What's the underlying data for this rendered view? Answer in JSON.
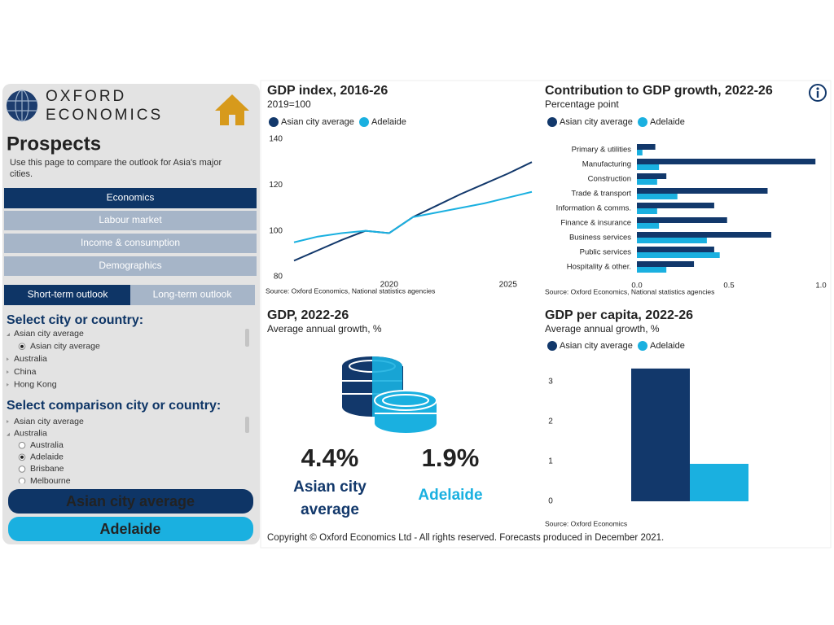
{
  "sidebar": {
    "logo": [
      "OXFORD",
      "ECONOMICS"
    ],
    "title": "Prospects",
    "description": "Use this page to compare the outlook for Asia's major cities.",
    "nav": [
      "Economics",
      "Labour market",
      "Income & consumption",
      "Demographics"
    ],
    "tabs": [
      "Short-term outlook",
      "Long-term outlook"
    ],
    "city_select": {
      "label": "Select city or country:",
      "items": [
        "Asian city average",
        "Asian city average",
        "Australia",
        "China",
        "Hong Kong"
      ]
    },
    "comparison_select": {
      "label": "Select comparison city or country:",
      "items": [
        "Asian city average",
        "Australia",
        "Australia",
        "Adelaide",
        "Brisbane",
        "Melbourne"
      ]
    },
    "selected": [
      "Asian city average",
      "Adelaide"
    ]
  },
  "footer": "Copyright © Oxford Economics Ltd - All rights reserved. Forecasts produced in December 2021.",
  "chart_data": [
    {
      "type": "line",
      "title": "GDP index, 2016-26",
      "subtitle": "2019=100",
      "source": "Source: Oxford Economics, National statistics agencies",
      "x": [
        2016,
        2017,
        2018,
        2019,
        2020,
        2021,
        2022,
        2023,
        2024,
        2025,
        2026
      ],
      "xlim": [
        2016,
        2026
      ],
      "xticks": [
        2020,
        2025
      ],
      "ylim": [
        80,
        140
      ],
      "yticks": [
        80,
        100,
        120,
        140
      ],
      "series": [
        {
          "name": "Asian city average",
          "color": "#12386b",
          "values": [
            87,
            91.5,
            96,
            100,
            99,
            106,
            111,
            116,
            120.5,
            125,
            130
          ]
        },
        {
          "name": "Adelaide",
          "color": "#1ab0e0",
          "values": [
            95,
            97.5,
            99,
            100,
            99,
            106,
            108,
            110,
            112,
            114.5,
            117
          ]
        }
      ]
    },
    {
      "type": "bar",
      "orientation": "horizontal",
      "title": "Contribution to GDP growth, 2022-26",
      "subtitle": "Percentage point",
      "source": "Source: Oxford Economics, National statistics agencies",
      "categories": [
        "Primary & utilities",
        "Manufacturing",
        "Construction",
        "Trade & transport",
        "Information & comms.",
        "Finance & insurance",
        "Business services",
        "Public services",
        "Hospitality & other."
      ],
      "xlim": [
        0,
        1
      ],
      "xticks": [
        {
          "value": 0,
          "label": "0.0"
        },
        0.5,
        {
          "value": 1,
          "label": "1.0"
        }
      ],
      "series": [
        {
          "name": "Asian city average",
          "color": "#12386b",
          "values": [
            0.1,
            0.97,
            0.16,
            0.71,
            0.42,
            0.49,
            0.73,
            0.42,
            0.31
          ]
        },
        {
          "name": "Adelaide",
          "color": "#1ab0e0",
          "values": [
            0.03,
            0.12,
            0.11,
            0.22,
            0.11,
            0.12,
            0.38,
            0.45,
            0.16
          ]
        }
      ]
    },
    {
      "type": "kpi",
      "title": "GDP, 2022-26",
      "subtitle": "Average annual growth, %",
      "series": [
        {
          "name": "Asian city average",
          "color": "#12386b",
          "values": [
            4.4
          ],
          "value_labels": [
            "4.4%"
          ]
        },
        {
          "name": "Adelaide",
          "color": "#1ab0e0",
          "values": [
            1.9
          ],
          "value_labels": [
            "1.9%"
          ]
        }
      ]
    },
    {
      "type": "bar",
      "orientation": "vertical",
      "title": "GDP per capita, 2022-26",
      "subtitle": "Average annual growth, %",
      "source": "Source: Oxford Economics",
      "categories": [
        null
      ],
      "ylim": [
        0,
        3.5
      ],
      "yticks": [
        0,
        1,
        2,
        3
      ],
      "series": [
        {
          "name": "Asian city average",
          "color": "#12386b",
          "values": [
            3.33
          ]
        },
        {
          "name": "Adelaide",
          "color": "#1ab0e0",
          "values": [
            0.94
          ]
        }
      ]
    }
  ]
}
